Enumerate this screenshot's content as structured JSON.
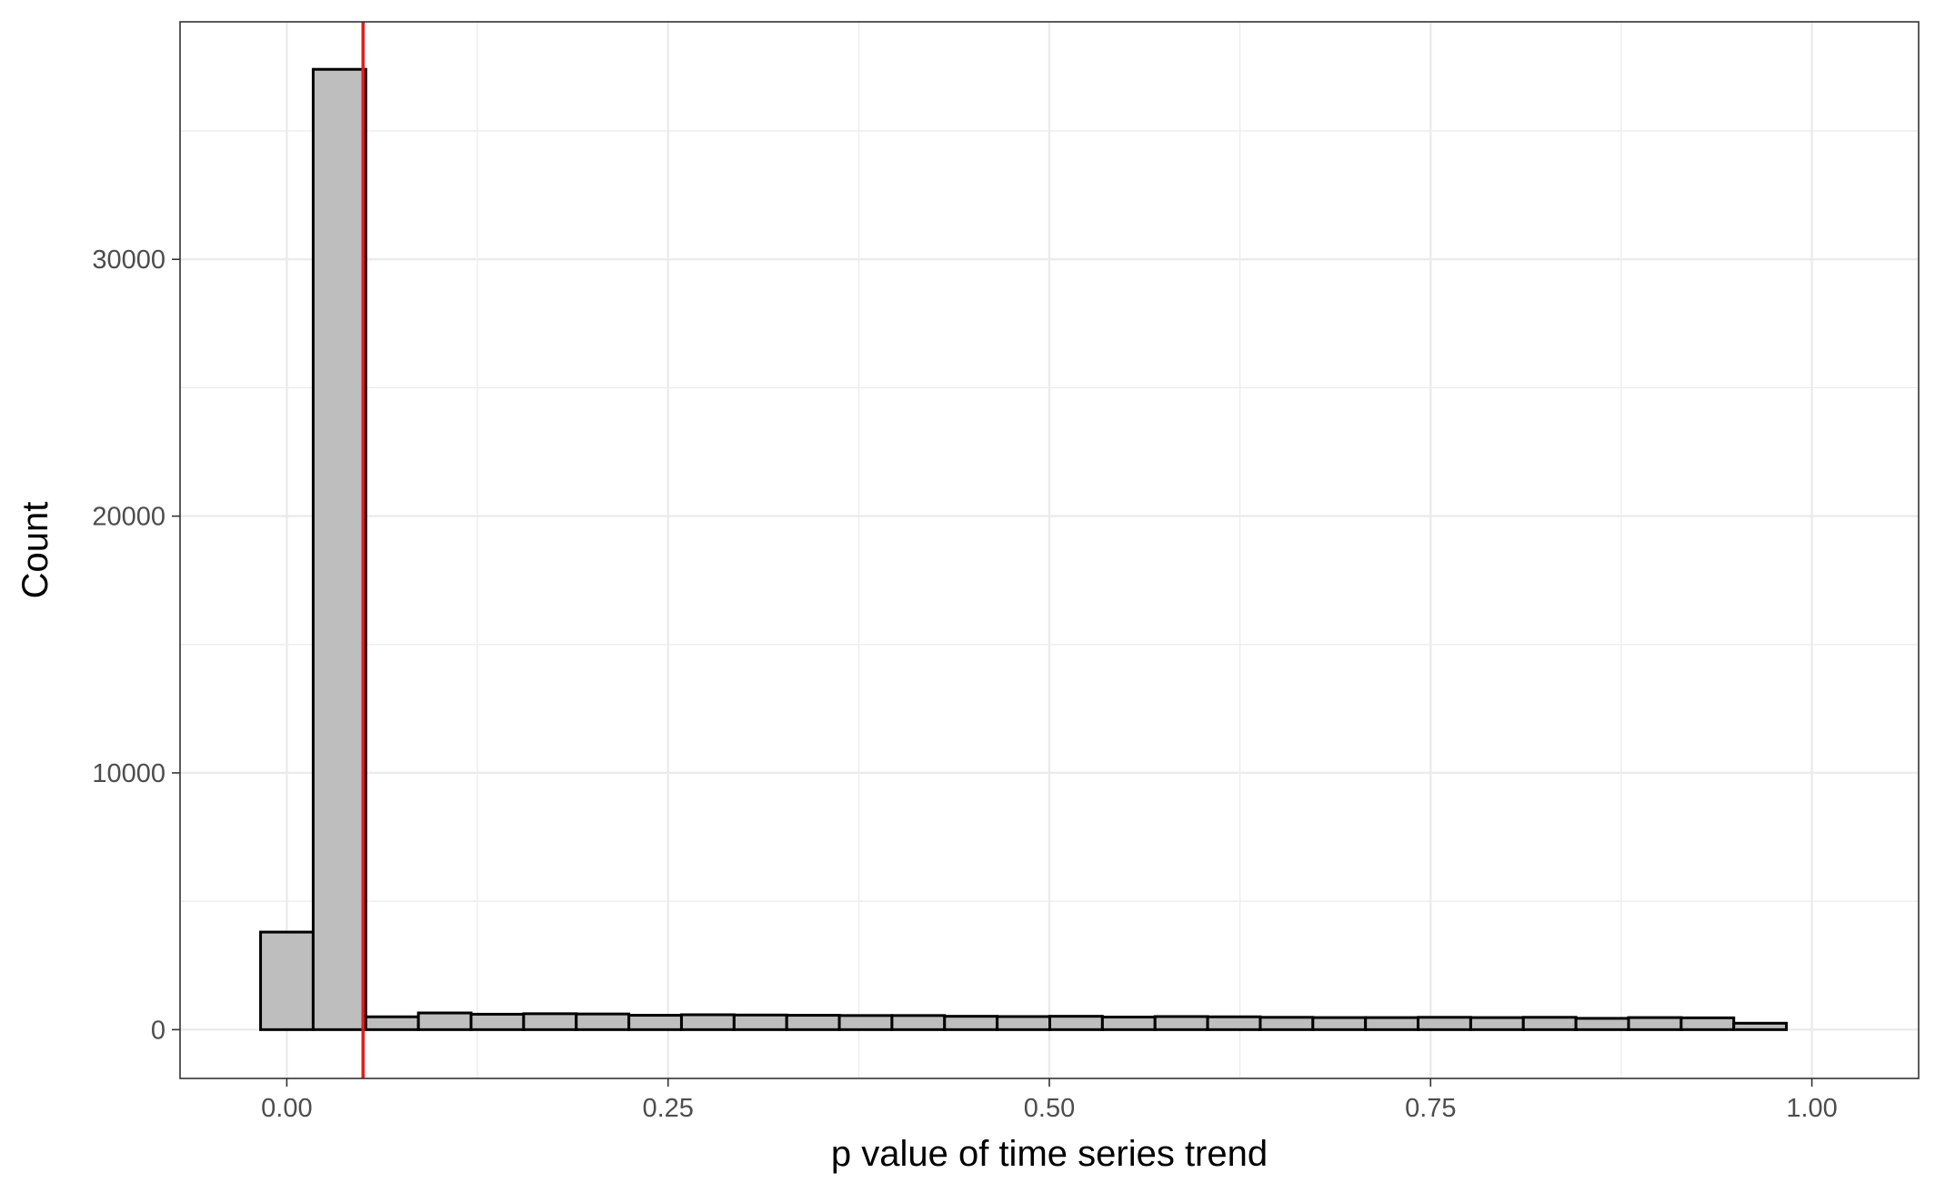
{
  "chart_data": {
    "type": "bar",
    "title": "",
    "xlabel": "p value of time series trend",
    "ylabel": "Count",
    "xlim": [
      -0.07,
      1.07
    ],
    "ylim": [
      -1900,
      39250
    ],
    "x_ticks": [
      {
        "value": 0.0,
        "label": "0.00"
      },
      {
        "value": 0.25,
        "label": "0.25"
      },
      {
        "value": 0.5,
        "label": "0.50"
      },
      {
        "value": 0.75,
        "label": "0.75"
      },
      {
        "value": 1.0,
        "label": "1.00"
      }
    ],
    "y_ticks": [
      {
        "value": 0,
        "label": "0"
      },
      {
        "value": 10000,
        "label": "10000"
      },
      {
        "value": 20000,
        "label": "20000"
      },
      {
        "value": 30000,
        "label": "30000"
      }
    ],
    "minor_x": [
      0.125,
      0.375,
      0.625,
      0.875
    ],
    "minor_y": [
      5000,
      15000,
      25000,
      35000
    ],
    "bin_width": 0.0345,
    "bin_start": -0.0172,
    "values": [
      3800,
      37400,
      500,
      650,
      600,
      620,
      610,
      560,
      580,
      570,
      560,
      550,
      550,
      520,
      510,
      520,
      490,
      510,
      500,
      480,
      470,
      470,
      480,
      470,
      480,
      440,
      470,
      460,
      250
    ],
    "vline": {
      "x": 0.05,
      "color": "#e41a1c"
    },
    "bar_fill": "#bebebe",
    "bar_stroke": "#000000",
    "grid": true
  }
}
